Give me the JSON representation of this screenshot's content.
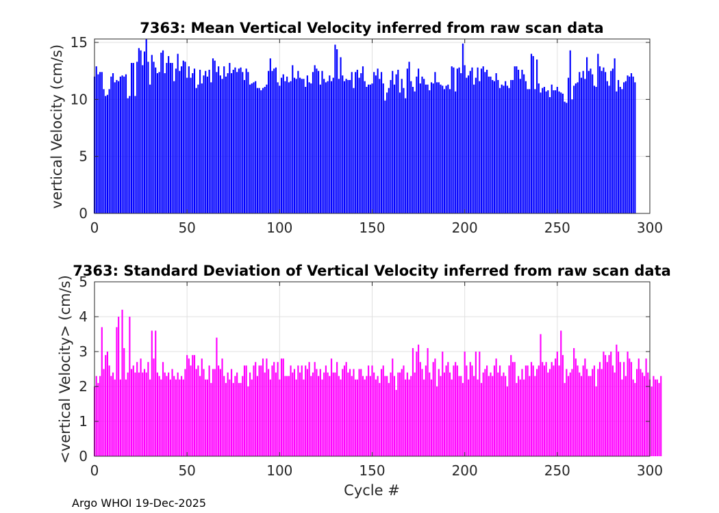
{
  "footer": "Argo WHOI 19-Dec-2025",
  "chart_data": [
    {
      "type": "bar",
      "title": "7363: Mean Vertical Velocity inferred from raw scan data",
      "xlabel": "",
      "ylabel": "vertical Velocity (cm/s)",
      "xlim": [
        0,
        300
      ],
      "ylim": [
        0,
        15.3
      ],
      "xticks": [
        "0",
        "50",
        "100",
        "150",
        "200",
        "250",
        "300"
      ],
      "yticks": [
        "0",
        "5",
        "10",
        "15"
      ],
      "ytick_values": [
        0,
        5,
        10,
        15
      ],
      "grid": true,
      "color": "#0000ff",
      "x_start": 0,
      "values": [
        12.0,
        12.9,
        12.2,
        12.4,
        12.4,
        10.9,
        10.3,
        10.4,
        10.9,
        12.0,
        12.3,
        11.5,
        11.7,
        11.6,
        12.0,
        12.1,
        12.0,
        12.2,
        10.1,
        10.3,
        13.2,
        13.2,
        10.3,
        13.3,
        14.5,
        14.3,
        13.0,
        14.2,
        15.3,
        13.3,
        11.3,
        13.9,
        13.3,
        12.8,
        12.3,
        12.4,
        14.1,
        14.3,
        12.3,
        13.2,
        13.8,
        13.2,
        13.2,
        11.6,
        12.7,
        14.0,
        12.5,
        12.9,
        13.4,
        13.3,
        11.9,
        12.9,
        11.9,
        12.3,
        12.7,
        11.0,
        11.3,
        12.6,
        11.4,
        12.1,
        12.5,
        12.0,
        12.6,
        11.5,
        13.6,
        13.4,
        12.4,
        12.9,
        12.1,
        11.8,
        12.9,
        12.0,
        12.3,
        13.2,
        12.3,
        12.6,
        12.8,
        12.4,
        12.7,
        12.8,
        12.4,
        11.7,
        12.7,
        12.4,
        11.3,
        11.4,
        11.5,
        11.6,
        11.0,
        11.0,
        10.8,
        11.0,
        11.1,
        11.3,
        12.5,
        13.6,
        12.5,
        12.7,
        12.8,
        11.5,
        11.2,
        11.9,
        12.2,
        11.6,
        12.0,
        11.5,
        11.6,
        13.0,
        11.9,
        11.8,
        12.5,
        11.9,
        11.8,
        11.8,
        11.1,
        12.1,
        11.5,
        11.4,
        12.4,
        13.0,
        12.7,
        12.5,
        11.3,
        12.5,
        11.8,
        11.5,
        11.6,
        12.1,
        11.6,
        11.9,
        14.8,
        14.4,
        11.8,
        13.7,
        12.1,
        11.6,
        11.8,
        11.7,
        11.7,
        12.4,
        11.0,
        12.4,
        12.6,
        11.9,
        12.3,
        12.9,
        11.6,
        11.1,
        11.3,
        11.3,
        11.4,
        12.4,
        12.1,
        12.7,
        11.8,
        12.4,
        11.4,
        9.9,
        10.6,
        11.0,
        11.7,
        12.5,
        11.3,
        12.2,
        12.6,
        10.6,
        11.8,
        11.0,
        10.1,
        12.7,
        13.3,
        11.6,
        11.1,
        10.7,
        12.0,
        12.7,
        11.4,
        12.0,
        11.8,
        11.3,
        11.3,
        10.8,
        11.5,
        11.4,
        12.4,
        11.5,
        11.5,
        11.3,
        11.2,
        10.9,
        11.2,
        11.3,
        10.9,
        12.9,
        12.8,
        10.7,
        12.7,
        12.8,
        12.3,
        14.9,
        13.0,
        11.9,
        12.1,
        12.5,
        12.8,
        11.3,
        11.9,
        12.8,
        11.6,
        12.7,
        12.9,
        12.4,
        12.6,
        12.0,
        12.0,
        11.7,
        11.6,
        12.3,
        11.7,
        11.0,
        11.3,
        11.2,
        11.6,
        11.2,
        11.0,
        11.7,
        11.7,
        12.9,
        12.9,
        12.6,
        11.8,
        12.6,
        12.2,
        11.6,
        10.9,
        10.9,
        14.0,
        13.8,
        10.9,
        13.5,
        11.4,
        10.6,
        11.0,
        11.1,
        10.7,
        10.8,
        10.2,
        11.3,
        10.8,
        10.8,
        11.1,
        10.7,
        10.6,
        10.5,
        9.8,
        9.7,
        11.9,
        14.3,
        10.0,
        11.2,
        11.4,
        11.5,
        12.4,
        11.9,
        12.5,
        11.8,
        13.7,
        12.5,
        12.7,
        12.2,
        11.2,
        11.1,
        14.0,
        12.9,
        12.5,
        12.8,
        12.4,
        11.6,
        11.2,
        12.5,
        12.7,
        13.6,
        10.7,
        11.7,
        11.1,
        10.9,
        11.5,
        11.6,
        12.1,
        12.0,
        12.3,
        12.0,
        11.5
      ]
    },
    {
      "type": "bar",
      "title": "7363: Standard Deviation of Vertical Velocity inferred from raw scan data",
      "xlabel": "Cycle #",
      "ylabel": "<vertical Velocity> (cm/s)",
      "xlim": [
        0,
        300
      ],
      "ylim": [
        0,
        5
      ],
      "xticks": [
        "0",
        "50",
        "100",
        "150",
        "200",
        "250",
        "300"
      ],
      "yticks": [
        "0",
        "1",
        "2",
        "3",
        "4",
        "5"
      ],
      "ytick_values": [
        0,
        1,
        2,
        3,
        4,
        5
      ],
      "grid": true,
      "color": "#ff00ff",
      "x_start": 0,
      "values": [
        2.0,
        2.3,
        2.1,
        2.3,
        3.7,
        2.5,
        2.9,
        3.0,
        2.6,
        2.3,
        2.4,
        2.2,
        3.7,
        4.0,
        2.2,
        4.2,
        3.1,
        2.2,
        2.4,
        4.0,
        2.5,
        2.6,
        2.4,
        2.7,
        2.4,
        2.8,
        2.4,
        2.5,
        2.4,
        2.7,
        2.2,
        3.6,
        2.8,
        3.6,
        2.4,
        2.3,
        2.2,
        2.7,
        2.4,
        2.3,
        2.4,
        2.2,
        2.5,
        2.3,
        2.2,
        2.4,
        2.2,
        2.3,
        2.2,
        2.5,
        2.9,
        2.8,
        2.6,
        2.9,
        2.9,
        2.5,
        2.6,
        2.3,
        2.8,
        2.5,
        2.2,
        2.2,
        2.6,
        2.1,
        2.5,
        2.5,
        3.4,
        2.6,
        2.5,
        2.8,
        2.3,
        2.1,
        2.4,
        2.2,
        2.5,
        2.1,
        2.3,
        2.4,
        2.1,
        2.1,
        2.3,
        2.6,
        2.6,
        2.0,
        2.4,
        2.2,
        2.6,
        2.7,
        2.3,
        2.6,
        2.6,
        2.8,
        2.4,
        2.8,
        2.5,
        2.2,
        2.6,
        2.7,
        2.4,
        2.7,
        2.2,
        2.8,
        2.8,
        2.3,
        2.3,
        2.3,
        2.6,
        2.4,
        2.5,
        2.2,
        2.6,
        2.4,
        2.6,
        2.2,
        2.6,
        2.5,
        2.7,
        2.3,
        2.4,
        2.7,
        2.5,
        2.3,
        2.5,
        2.2,
        2.4,
        2.6,
        2.4,
        2.3,
        2.8,
        2.4,
        2.4,
        2.7,
        2.3,
        2.2,
        2.5,
        2.6,
        2.7,
        2.4,
        2.5,
        2.3,
        2.5,
        2.2,
        2.2,
        2.5,
        2.5,
        2.3,
        2.2,
        2.3,
        2.6,
        2.3,
        2.6,
        2.4,
        2.2,
        2.3,
        2.1,
        2.5,
        2.6,
        2.3,
        2.3,
        2.1,
        2.4,
        2.8,
        2.3,
        1.9,
        2.4,
        2.4,
        2.5,
        2.6,
        2.2,
        2.4,
        2.2,
        2.3,
        3.1,
        2.4,
        3.0,
        3.2,
        2.7,
        2.5,
        2.2,
        2.6,
        3.1,
        2.4,
        2.2,
        2.7,
        2.8,
        2.0,
        2.5,
        2.3,
        3.0,
        2.4,
        2.6,
        2.7,
        2.4,
        2.2,
        2.6,
        2.7,
        2.6,
        2.3,
        2.3,
        2.1,
        3.0,
        2.6,
        2.2,
        2.7,
        2.6,
        2.3,
        3.0,
        2.2,
        3.0,
        2.1,
        2.4,
        2.5,
        2.6,
        2.3,
        2.4,
        2.3,
        2.6,
        2.8,
        2.4,
        2.6,
        2.3,
        2.4,
        2.3,
        2.0,
        2.6,
        2.9,
        2.7,
        2.7,
        2.1,
        2.3,
        2.2,
        2.5,
        2.2,
        2.6,
        2.6,
        2.3,
        2.7,
        2.6,
        2.3,
        2.5,
        2.6,
        3.5,
        2.7,
        2.6,
        2.7,
        2.4,
        2.5,
        2.7,
        2.6,
        2.8,
        3.0,
        2.6,
        3.6,
        2.9,
        2.1,
        2.5,
        2.3,
        2.4,
        2.5,
        3.1,
        2.8,
        2.6,
        2.4,
        2.3,
        2.6,
        2.8,
        2.5,
        2.3,
        2.3,
        2.5,
        2.6,
        2.0,
        2.5,
        2.7,
        2.5,
        3.0,
        2.9,
        2.7,
        2.9,
        3.0,
        2.6,
        2.4,
        3.2,
        3.0,
        2.7,
        2.2,
        2.7,
        2.3,
        3.0,
        2.8,
        2.7,
        2.2,
        2.1,
        2.5,
        2.8,
        2.5,
        2.4,
        2.3,
        2.8,
        2.4,
        2.2,
        2.0,
        2.3,
        2.2,
        2.2,
        2.1,
        2.3
      ]
    }
  ]
}
